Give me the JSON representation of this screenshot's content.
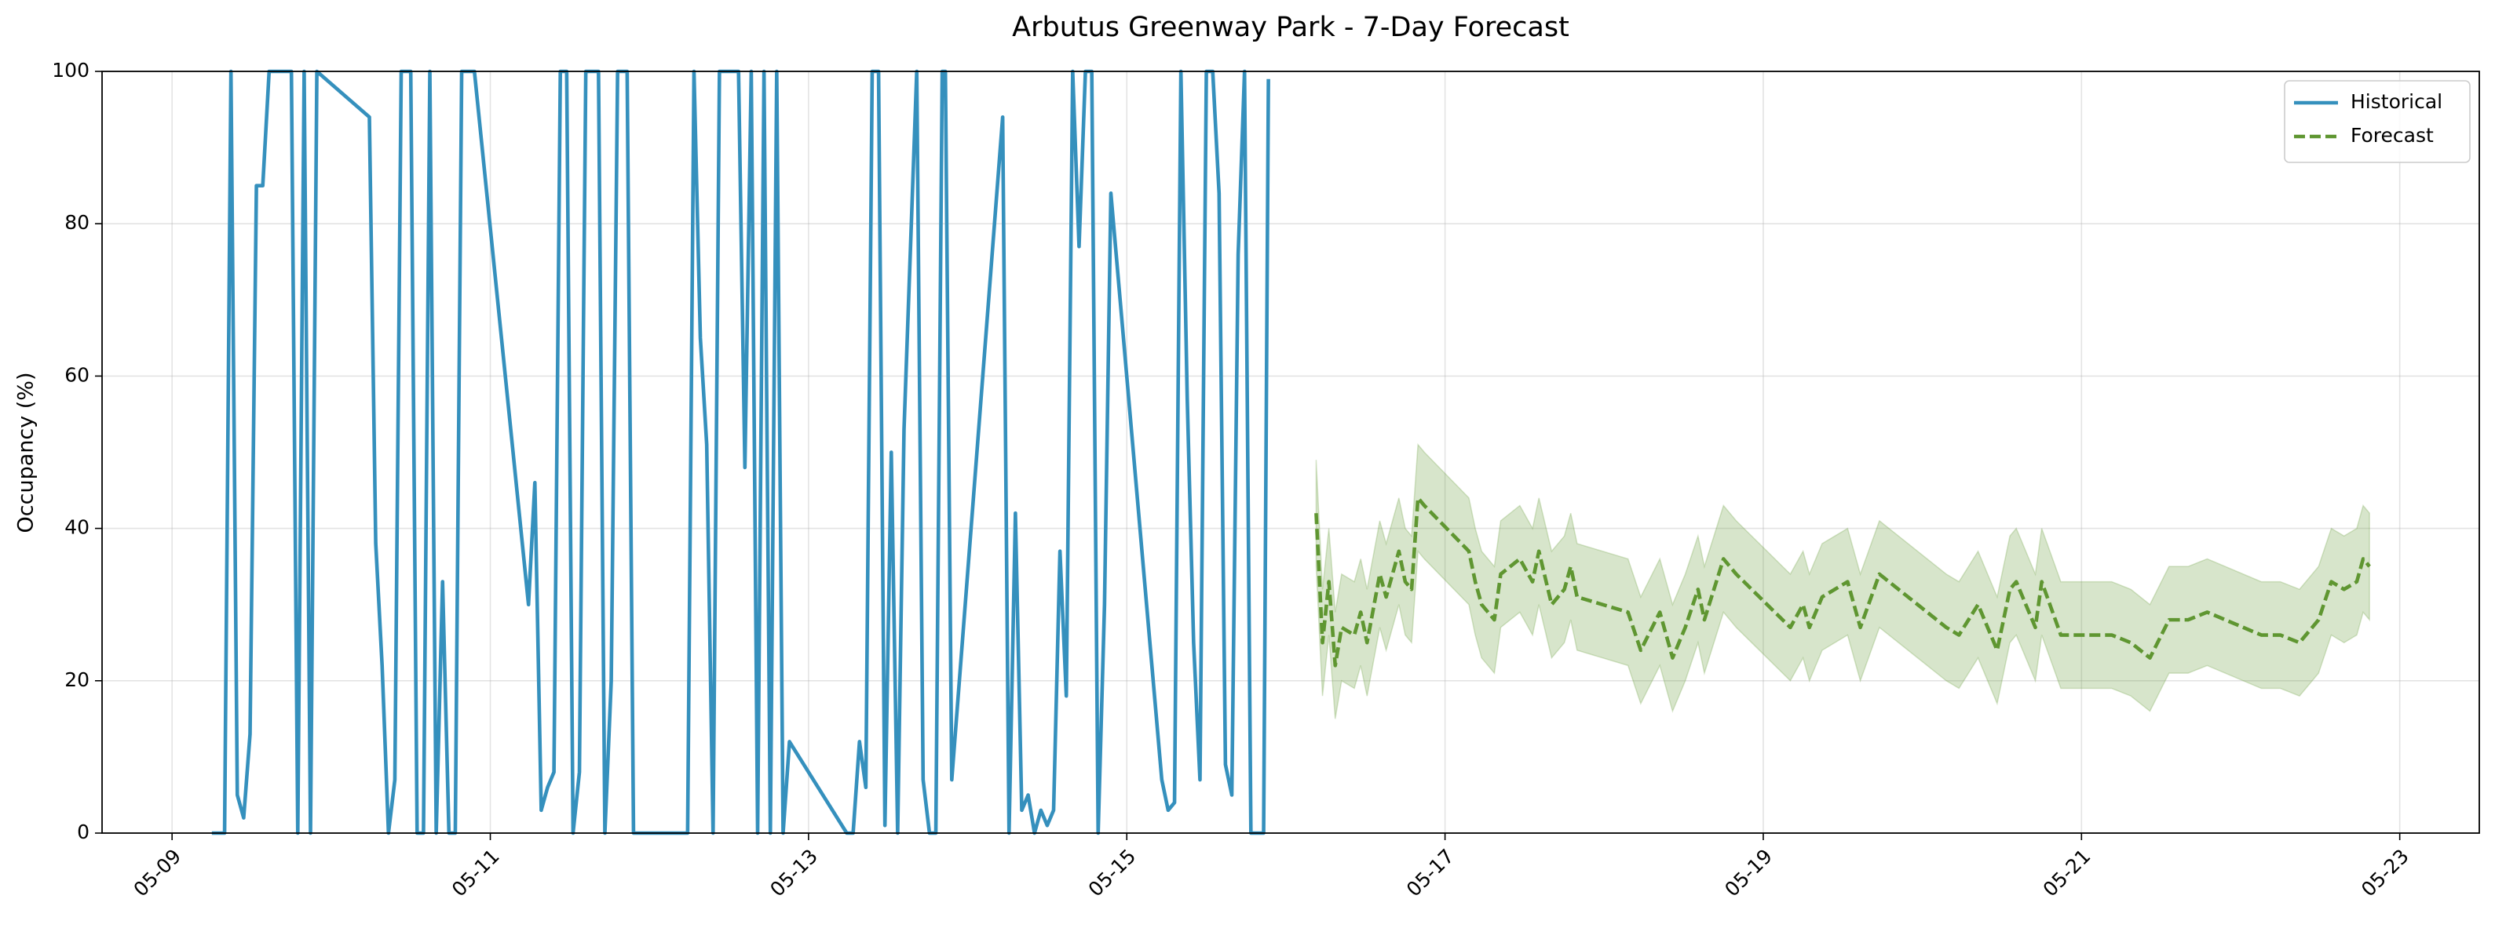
{
  "chart_data": {
    "type": "line",
    "title": "Arbutus Greenway Park - 7-Day Forecast",
    "y_label": "Occupancy (%)",
    "xlim": [
      8.56,
      23.5
    ],
    "xticks": [
      {
        "value": 9,
        "label": "05-09"
      },
      {
        "value": 11,
        "label": "05-11"
      },
      {
        "value": 13,
        "label": "05-13"
      },
      {
        "value": 15,
        "label": "05-15"
      },
      {
        "value": 17,
        "label": "05-17"
      },
      {
        "value": 19,
        "label": "05-19"
      },
      {
        "value": 21,
        "label": "05-21"
      },
      {
        "value": 23,
        "label": "05-23"
      }
    ],
    "ylim": [
      0,
      100
    ],
    "yticks": [
      0,
      20,
      40,
      60,
      80,
      100
    ],
    "grid": true,
    "legend": "upper right",
    "series": [
      {
        "name": "Historical",
        "color": "#3590bd",
        "linestyle": "solid",
        "x": [
          9.25,
          9.33,
          9.37,
          9.41,
          9.45,
          9.49,
          9.53,
          9.57,
          9.61,
          9.75,
          9.79,
          9.83,
          9.87,
          9.91,
          10.24,
          10.28,
          10.32,
          10.36,
          10.4,
          10.44,
          10.5,
          10.54,
          10.58,
          10.62,
          10.66,
          10.7,
          10.74,
          10.78,
          10.82,
          10.9,
          11.24,
          11.28,
          11.32,
          11.36,
          11.4,
          11.44,
          11.48,
          11.52,
          11.56,
          11.6,
          11.68,
          11.72,
          11.76,
          11.8,
          11.86,
          11.9,
          12.24,
          12.28,
          12.32,
          12.36,
          12.4,
          12.44,
          12.56,
          12.6,
          12.64,
          12.68,
          12.72,
          12.76,
          12.8,
          12.84,
          12.88,
          13.24,
          13.28,
          13.32,
          13.36,
          13.4,
          13.44,
          13.48,
          13.52,
          13.56,
          13.6,
          13.68,
          13.72,
          13.76,
          13.8,
          13.84,
          13.86,
          13.9,
          14.22,
          14.26,
          14.3,
          14.34,
          14.38,
          14.42,
          14.46,
          14.5,
          14.54,
          14.58,
          14.62,
          14.66,
          14.7,
          14.74,
          14.78,
          14.82,
          14.86,
          14.9,
          15.22,
          15.26,
          15.3,
          15.34,
          15.38,
          15.42,
          15.46,
          15.5,
          15.54,
          15.58,
          15.62,
          15.66,
          15.7,
          15.74,
          15.78,
          15.82,
          15.86,
          15.89
        ],
        "values": [
          0,
          0,
          100,
          5,
          2,
          13,
          85,
          85,
          100,
          100,
          0,
          100,
          0,
          100,
          94,
          38,
          22,
          0,
          7,
          100,
          100,
          0,
          0,
          100,
          0,
          33,
          0,
          0,
          100,
          100,
          30,
          46,
          3,
          6,
          8,
          100,
          100,
          0,
          8,
          100,
          100,
          0,
          20,
          100,
          100,
          0,
          0,
          100,
          65,
          51,
          0,
          100,
          100,
          48,
          100,
          0,
          100,
          0,
          100,
          0,
          12,
          0,
          0,
          12,
          6,
          100,
          100,
          1,
          50,
          0,
          53,
          100,
          7,
          0,
          0,
          100,
          100,
          7,
          94,
          0,
          42,
          3,
          5,
          0,
          3,
          1,
          3,
          37,
          18,
          100,
          77,
          100,
          100,
          0,
          30,
          84,
          7,
          3,
          4,
          100,
          57,
          25,
          7,
          100,
          100,
          84,
          9,
          5,
          76,
          100,
          0,
          0,
          0,
          99
        ]
      },
      {
        "name": "Forecast",
        "color": "#5f9631",
        "linestyle": "dashed",
        "x": [
          16.19,
          16.23,
          16.27,
          16.31,
          16.35,
          16.43,
          16.47,
          16.51,
          16.59,
          16.63,
          16.71,
          16.75,
          16.79,
          16.83,
          16.87,
          17.15,
          17.19,
          17.23,
          17.31,
          17.35,
          17.47,
          17.55,
          17.59,
          17.67,
          17.75,
          17.79,
          17.83,
          18.15,
          18.23,
          18.35,
          18.43,
          18.51,
          18.59,
          18.63,
          18.75,
          18.83,
          19.17,
          19.25,
          19.29,
          19.37,
          19.45,
          19.53,
          19.61,
          19.73,
          19.85,
          20.15,
          20.23,
          20.35,
          20.47,
          20.55,
          20.59,
          20.71,
          20.75,
          20.87,
          21.19,
          21.31,
          21.43,
          21.55,
          21.67,
          21.79,
          22.13,
          22.25,
          22.37,
          22.49,
          22.57,
          22.65,
          22.73,
          22.77,
          22.81
        ],
        "values": [
          42,
          25,
          33,
          22,
          27,
          26,
          29,
          25,
          34,
          31,
          37,
          33,
          32,
          44,
          43,
          37,
          33,
          30,
          28,
          34,
          36,
          33,
          37,
          30,
          32,
          35,
          31,
          29,
          24,
          29,
          23,
          27,
          32,
          28,
          36,
          34,
          27,
          30,
          27,
          31,
          32,
          33,
          27,
          34,
          32,
          27,
          26,
          30,
          24,
          32,
          33,
          27,
          33,
          26,
          26,
          25,
          23,
          28,
          28,
          29,
          26,
          26,
          25,
          28,
          33,
          32,
          33,
          36,
          35
        ],
        "lower": [
          35,
          18,
          26,
          15,
          20,
          19,
          22,
          18,
          27,
          24,
          30,
          26,
          25,
          37,
          36,
          30,
          26,
          23,
          21,
          27,
          29,
          26,
          30,
          23,
          25,
          28,
          24,
          22,
          17,
          22,
          16,
          20,
          25,
          21,
          29,
          27,
          20,
          23,
          20,
          24,
          25,
          26,
          20,
          27,
          25,
          20,
          19,
          23,
          17,
          25,
          26,
          20,
          26,
          19,
          19,
          18,
          16,
          21,
          21,
          22,
          19,
          19,
          18,
          21,
          26,
          25,
          26,
          29,
          28
        ],
        "upper": [
          49,
          32,
          40,
          29,
          34,
          33,
          36,
          32,
          41,
          38,
          44,
          40,
          39,
          51,
          50,
          44,
          40,
          37,
          35,
          41,
          43,
          40,
          44,
          37,
          39,
          42,
          38,
          36,
          31,
          36,
          30,
          34,
          39,
          35,
          43,
          41,
          34,
          37,
          34,
          38,
          39,
          40,
          34,
          41,
          39,
          34,
          33,
          37,
          31,
          39,
          40,
          34,
          40,
          33,
          33,
          32,
          30,
          35,
          35,
          36,
          33,
          33,
          32,
          35,
          40,
          39,
          40,
          43,
          42
        ]
      }
    ]
  }
}
